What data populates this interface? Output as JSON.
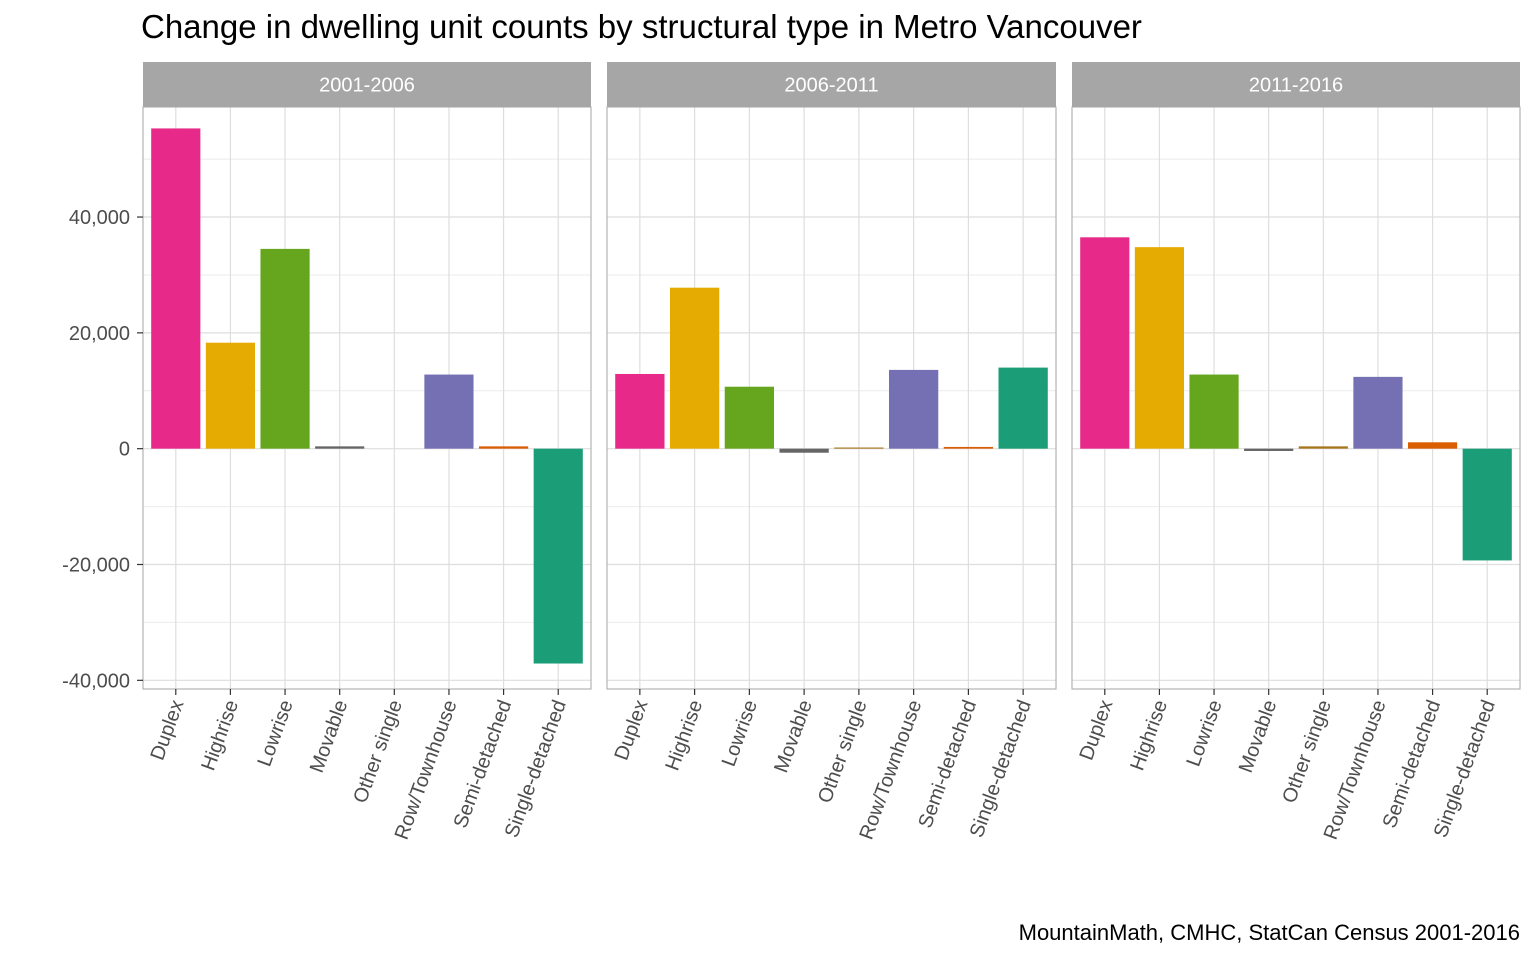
{
  "chart_data": {
    "type": "bar",
    "title": "Change in dwelling unit counts by structural type in Metro Vancouver",
    "caption": "MountainMath, CMHC, StatCan Census 2001-2016",
    "xlabel": "",
    "ylabel": "",
    "ylim": [
      -41500,
      59000
    ],
    "y_ticks": [
      -40000,
      -20000,
      0,
      20000,
      40000
    ],
    "y_tick_labels": [
      "-40,000",
      "-20,000",
      "0",
      "20,000",
      "40,000"
    ],
    "grid": true,
    "legend": "none",
    "categories": [
      "Duplex",
      "Highrise",
      "Lowrise",
      "Movable",
      "Other single",
      "Row/Townhouse",
      "Semi-detached",
      "Single-detached"
    ],
    "colors": [
      "#E7298A",
      "#E6AB02",
      "#66A61E",
      "#666666",
      "#A6761D",
      "#7570B3",
      "#D95F02",
      "#1B9E77"
    ],
    "facets": [
      {
        "label": "2001-2006",
        "values": [
          55300,
          18300,
          34500,
          400,
          0,
          12800,
          400,
          -37100
        ]
      },
      {
        "label": "2006-2011",
        "values": [
          12900,
          27800,
          10700,
          -700,
          200,
          13600,
          300,
          14000
        ]
      },
      {
        "label": "2011-2016",
        "values": [
          36500,
          34800,
          12800,
          -400,
          400,
          12400,
          1100,
          -19300
        ]
      }
    ]
  }
}
